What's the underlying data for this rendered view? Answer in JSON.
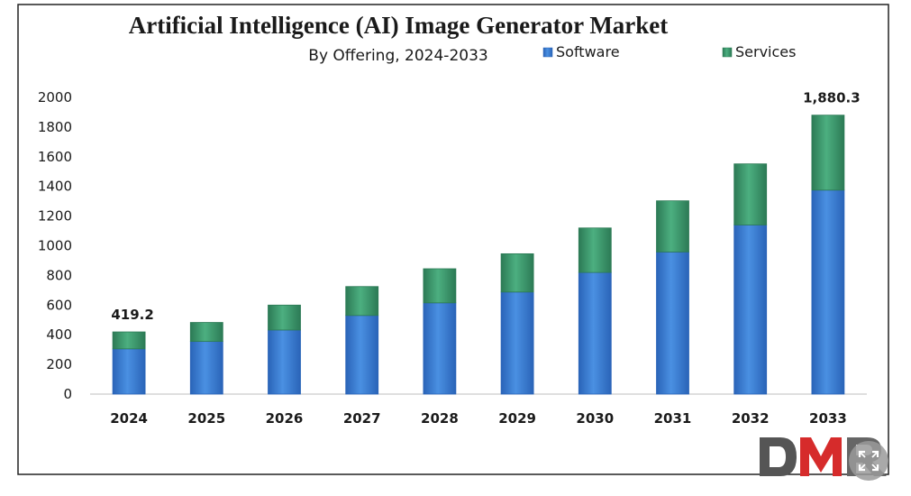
{
  "chart_data": {
    "type": "bar",
    "stacked": true,
    "title": "Artificial Intelligence (AI) Image Generator Market",
    "subtitle": "By Offering, 2024-2033",
    "categories": [
      "2024",
      "2025",
      "2026",
      "2027",
      "2028",
      "2029",
      "2030",
      "2031",
      "2032",
      "2033"
    ],
    "series": [
      {
        "name": "Software",
        "color": "#3b7dd8",
        "values": [
          305,
          355,
          432,
          530,
          615,
          688,
          820,
          958,
          1140,
          1375
        ]
      },
      {
        "name": "Services",
        "color": "#3d9a70",
        "values": [
          114.2,
          128,
          168,
          195,
          230,
          258,
          300,
          345,
          412,
          505.3
        ]
      }
    ],
    "ylim": [
      0,
      2000
    ],
    "yticks": [
      "0",
      "200",
      "400",
      "600",
      "800",
      "1000",
      "1200",
      "1400",
      "1600",
      "1800",
      "2000"
    ],
    "data_labels": [
      {
        "category": "2024",
        "text": "419.2"
      },
      {
        "category": "2033",
        "text": "1,880.3"
      }
    ],
    "legend_position": "top-right",
    "grid": false
  },
  "logo": {
    "text": "DMR",
    "color_dark": "#555555",
    "color_red": "#d62b2b"
  },
  "icons": {
    "expand": "expand-icon"
  }
}
